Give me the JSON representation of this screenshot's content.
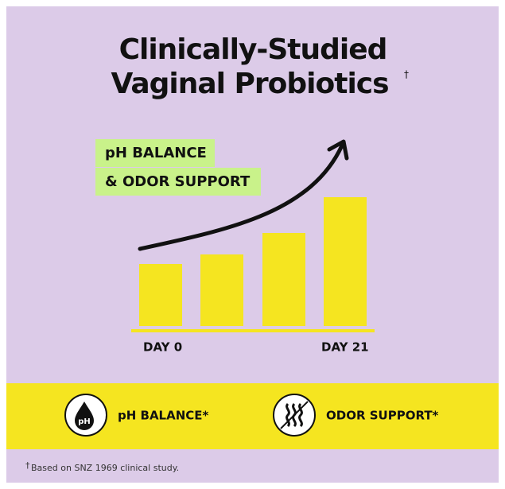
{
  "header": {
    "title_lines": [
      "Clinically-Studied",
      "Vaginal Probiotics"
    ],
    "title_mark": "†"
  },
  "callout": {
    "lines": [
      "pH BALANCE",
      "& ODOR SUPPORT"
    ]
  },
  "axis": {
    "start": "DAY 0",
    "end": "DAY 21"
  },
  "features": [
    {
      "icon_text": "pH",
      "label": "pH BALANCE*"
    },
    {
      "label": "ODOR SUPPORT*"
    }
  ],
  "footnote": {
    "mark": "†",
    "text": "Based on SNZ 1969 clinical study."
  }
}
